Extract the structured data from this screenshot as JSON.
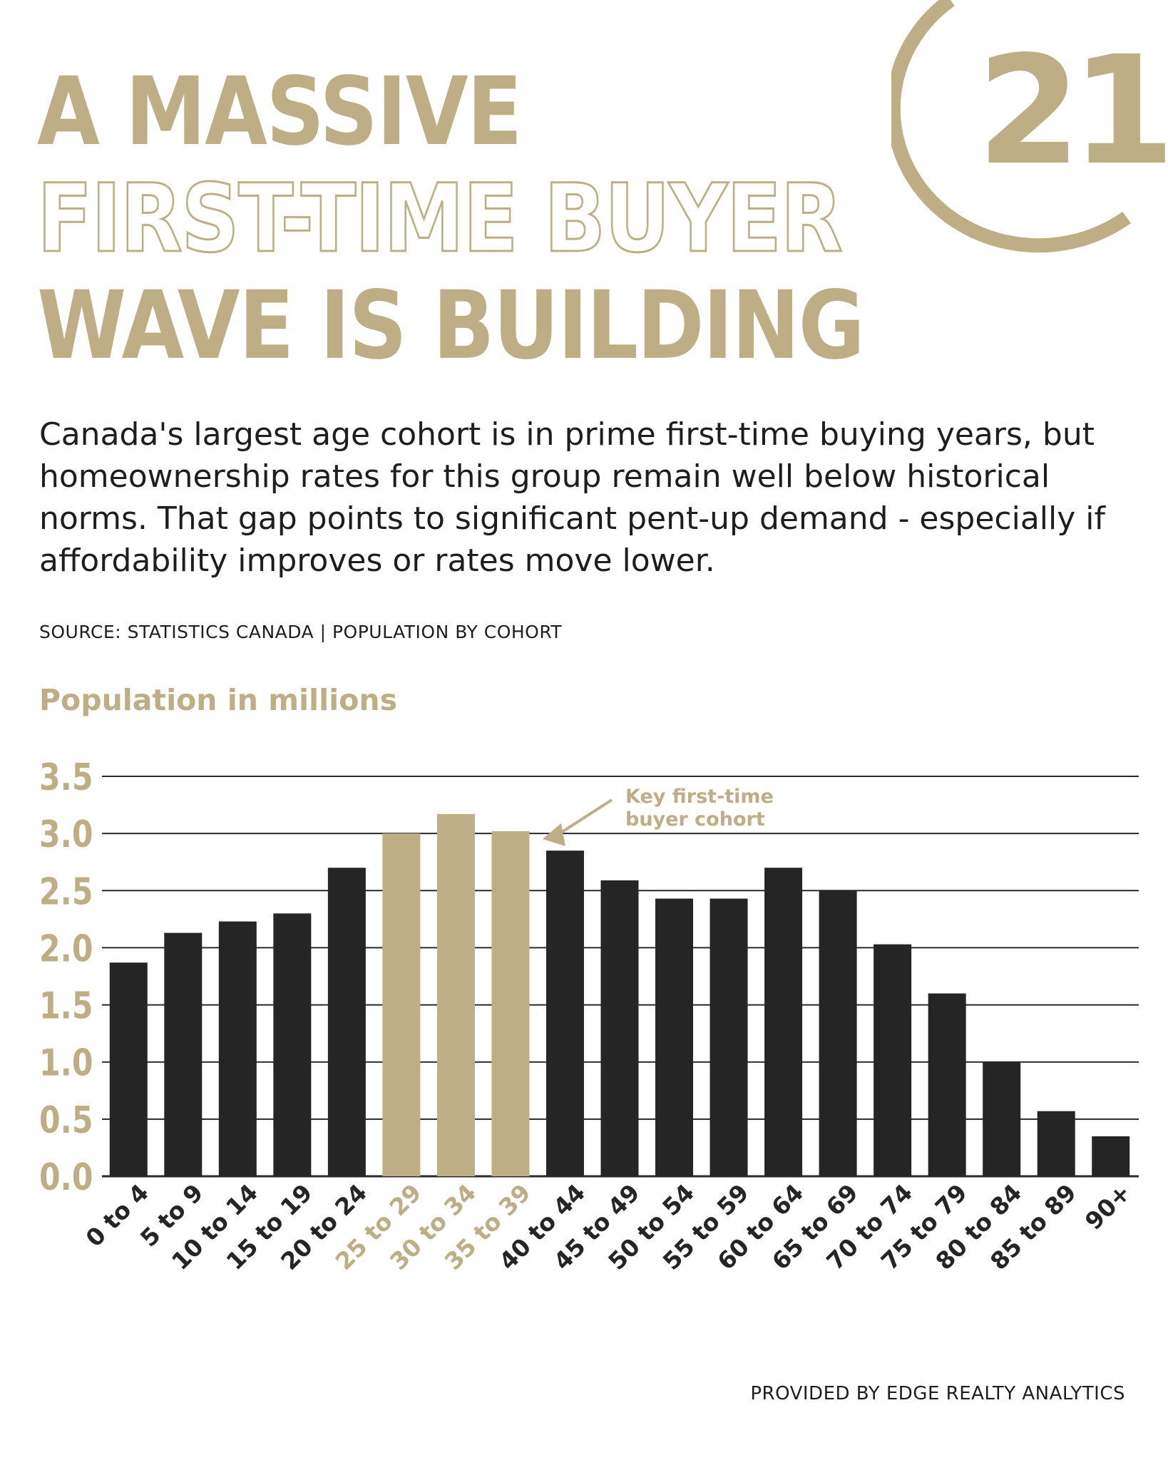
{
  "brand": {
    "logo_text": "21",
    "color_gold": "#bdae86",
    "color_dark": "#252525"
  },
  "headline": {
    "line1": "A MASSIVE",
    "line2": "FIRST-TIME BUYER",
    "line3": "WAVE IS BUILDING"
  },
  "intro": "Canada's largest age cohort is in prime first-time buying years, but homeownership rates for this group remain well below historical norms. That gap points to significant pent-up demand - especially if affordability improves or rates move lower.",
  "source": "SOURCE: STATISTICS CANADA | POPULATION BY COHORT",
  "footer": "PROVIDED BY EDGE REALTY ANALYTICS",
  "chart_data": {
    "type": "bar",
    "title": "Population in millions",
    "ylim": [
      0,
      3.5
    ],
    "yticks": [
      "0.0",
      "0.5",
      "1.0",
      "1.5",
      "2.0",
      "2.5",
      "3.0",
      "3.5"
    ],
    "grid": true,
    "categories": [
      "0 to 4",
      "5 to 9",
      "10 to 14",
      "15 to 19",
      "20 to 24",
      "25 to 29",
      "30 to 34",
      "35 to 39",
      "40 to 44",
      "45 to 49",
      "50 to 54",
      "55 to 59",
      "60 to 64",
      "65 to 69",
      "70 to 74",
      "75 to 79",
      "80 to 84",
      "85 to 89",
      "90+"
    ],
    "values": [
      1.87,
      2.13,
      2.23,
      2.3,
      2.7,
      3.0,
      3.17,
      3.02,
      2.85,
      2.59,
      2.43,
      2.43,
      2.7,
      2.5,
      2.03,
      1.6,
      1.0,
      0.57,
      0.35
    ],
    "highlighted": [
      "25 to 29",
      "30 to 34",
      "35 to 39"
    ],
    "annotation": {
      "text_line1": "Key first-time",
      "text_line2": "buyer cohort",
      "target": "35 to 39"
    }
  }
}
